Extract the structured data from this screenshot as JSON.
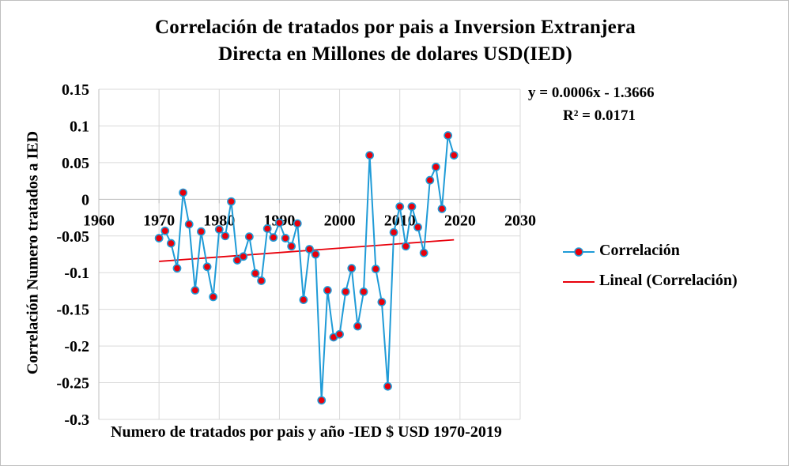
{
  "chart_data": {
    "type": "line",
    "title": [
      "Correlación  de tratados  por pais a Inversion  Extranjera",
      "Directa  en Millones  de dolares  USD(IED)"
    ],
    "xlabel": "Numero de tratados  por pais y año -IED $ USD 1970-2019",
    "ylabel": "Correlación  Numero tratados  a IED",
    "xlim": [
      1960,
      2030
    ],
    "ylim": [
      -0.3,
      0.15
    ],
    "x_ticks": [
      "1960",
      "1970",
      "1980",
      "1990",
      "2000",
      "2010",
      "2020",
      "2030"
    ],
    "y_ticks": [
      "0.15",
      "0.1",
      "0.05",
      "0",
      "-0.05",
      "-0.1",
      "-0.15",
      "-0.2",
      "-0.25",
      "-0.3"
    ],
    "grid": true,
    "legend_position": "right",
    "series": [
      {
        "name": "Correlación",
        "color": "#1f9bd7",
        "marker_color": "#e8000b",
        "x": [
          1970,
          1971,
          1972,
          1973,
          1974,
          1975,
          1976,
          1977,
          1978,
          1979,
          1980,
          1981,
          1982,
          1983,
          1984,
          1985,
          1986,
          1987,
          1988,
          1989,
          1990,
          1991,
          1992,
          1993,
          1994,
          1995,
          1996,
          1997,
          1998,
          1999,
          2000,
          2001,
          2002,
          2003,
          2004,
          2005,
          2006,
          2007,
          2008,
          2009,
          2010,
          2011,
          2012,
          2013,
          2014,
          2015,
          2016,
          2017,
          2018,
          2019
        ],
        "y": [
          -0.053,
          -0.043,
          -0.06,
          -0.094,
          0.009,
          -0.034,
          -0.124,
          -0.044,
          -0.092,
          -0.133,
          -0.041,
          -0.05,
          -0.003,
          -0.083,
          -0.078,
          -0.051,
          -0.101,
          -0.111,
          -0.04,
          -0.052,
          -0.032,
          -0.053,
          -0.064,
          -0.033,
          -0.137,
          -0.068,
          -0.075,
          -0.274,
          -0.124,
          -0.188,
          -0.184,
          -0.126,
          -0.094,
          -0.173,
          -0.126,
          0.06,
          -0.095,
          -0.14,
          -0.255,
          -0.045,
          -0.01,
          -0.064,
          -0.01,
          -0.038,
          -0.073,
          0.026,
          0.044,
          -0.013,
          0.087,
          0.06
        ]
      },
      {
        "name": "Lineal (Correlación)",
        "color": "#e8000b",
        "type": "trendline",
        "slope": 0.0006,
        "intercept": -1.3666
      }
    ],
    "annotations": [
      "y = 0.0006x - 1.3666",
      "R² = 0.0171"
    ]
  },
  "legend": {
    "series_label": "Correlación",
    "trend_label": "Lineal (Correlación)"
  }
}
